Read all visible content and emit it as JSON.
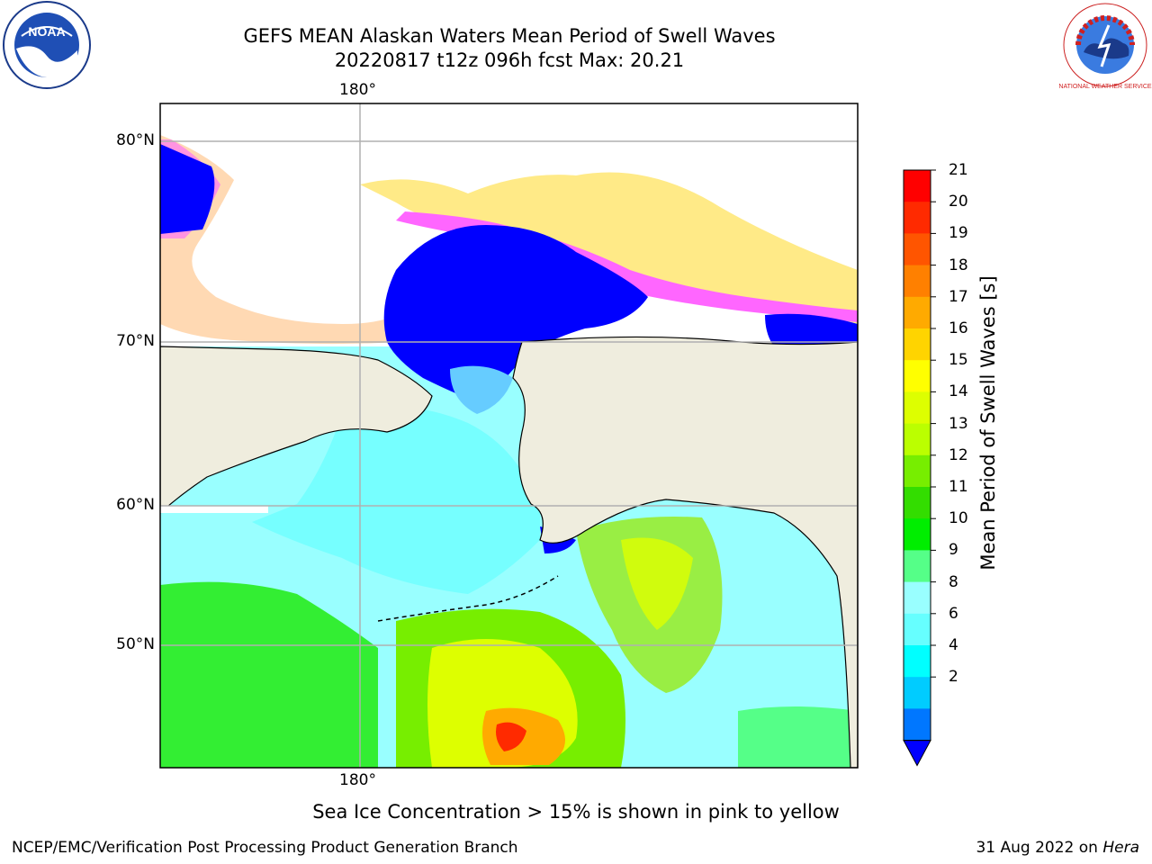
{
  "header": {
    "title_line1": "GEFS MEAN Alaskan Waters Mean Period of Swell Waves",
    "title_line2": "20220817 t12z 096h fcst   Max: 20.21"
  },
  "logos": {
    "left": "noaa-logo",
    "left_text": "NOAA",
    "right": "nws-logo",
    "right_text": "NATIONAL WEATHER SERVICE"
  },
  "map": {
    "lon_label_top": "180°",
    "lon_label_bottom": "180°",
    "lat_labels": [
      "80°N",
      "70°N",
      "60°N",
      "50°N"
    ],
    "colors": {
      "land": "#efedde",
      "ice_white": "#ffffff",
      "ice_pink": "#ff66ff",
      "ice_yellow": "#ffe87a",
      "grid": "#b0b0b0"
    }
  },
  "colorbar": {
    "label": "Mean Period of Swell Waves [s]",
    "ticks": [
      "21",
      "20",
      "19",
      "18",
      "17",
      "16",
      "15",
      "14",
      "13",
      "12",
      "11",
      "10",
      "9",
      "8",
      "6",
      "4",
      "2"
    ],
    "colors": [
      "#ff0000",
      "#ff2a00",
      "#ff5500",
      "#ff8000",
      "#ffaa00",
      "#ffd400",
      "#ffff00",
      "#ddff00",
      "#bbff00",
      "#77ee00",
      "#33dd00",
      "#00ee00",
      "#55ff88",
      "#99ffff",
      "#66ffff",
      "#00ffff",
      "#00ccff",
      "#0077ff"
    ],
    "extend_color": "#0000ff"
  },
  "caption": "Sea Ice Concentration > 15% is shown in pink to yellow",
  "footer": {
    "left": "NCEP/EMC/Verification Post Processing Product Generation Branch",
    "right_date": "31 Aug 2022 on ",
    "right_host": "Hera"
  }
}
